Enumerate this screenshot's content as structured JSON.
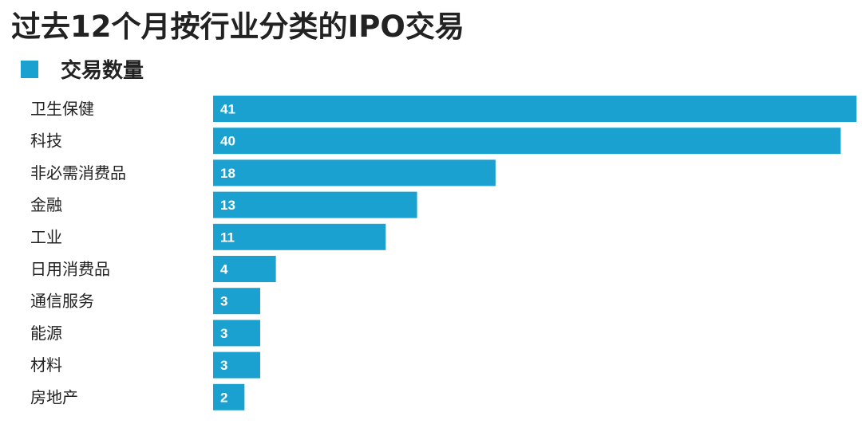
{
  "chart_data": {
    "type": "bar",
    "orientation": "horizontal",
    "title": "过去12个月按行业分类的IPO交易",
    "legend": {
      "placement": "top-left"
    },
    "categories": [
      "卫生保健",
      "科技",
      "非必需消费品",
      "金融",
      "工业",
      "日用消费品",
      "通信服务",
      "能源",
      "材料",
      "房地产"
    ],
    "series": [
      {
        "name": "交易数量",
        "values": [
          41,
          40,
          18,
          13,
          11,
          4,
          3,
          3,
          3,
          2
        ],
        "color": "#1ba1cf"
      }
    ],
    "xlim": [
      0,
      41
    ],
    "grid": false
  }
}
